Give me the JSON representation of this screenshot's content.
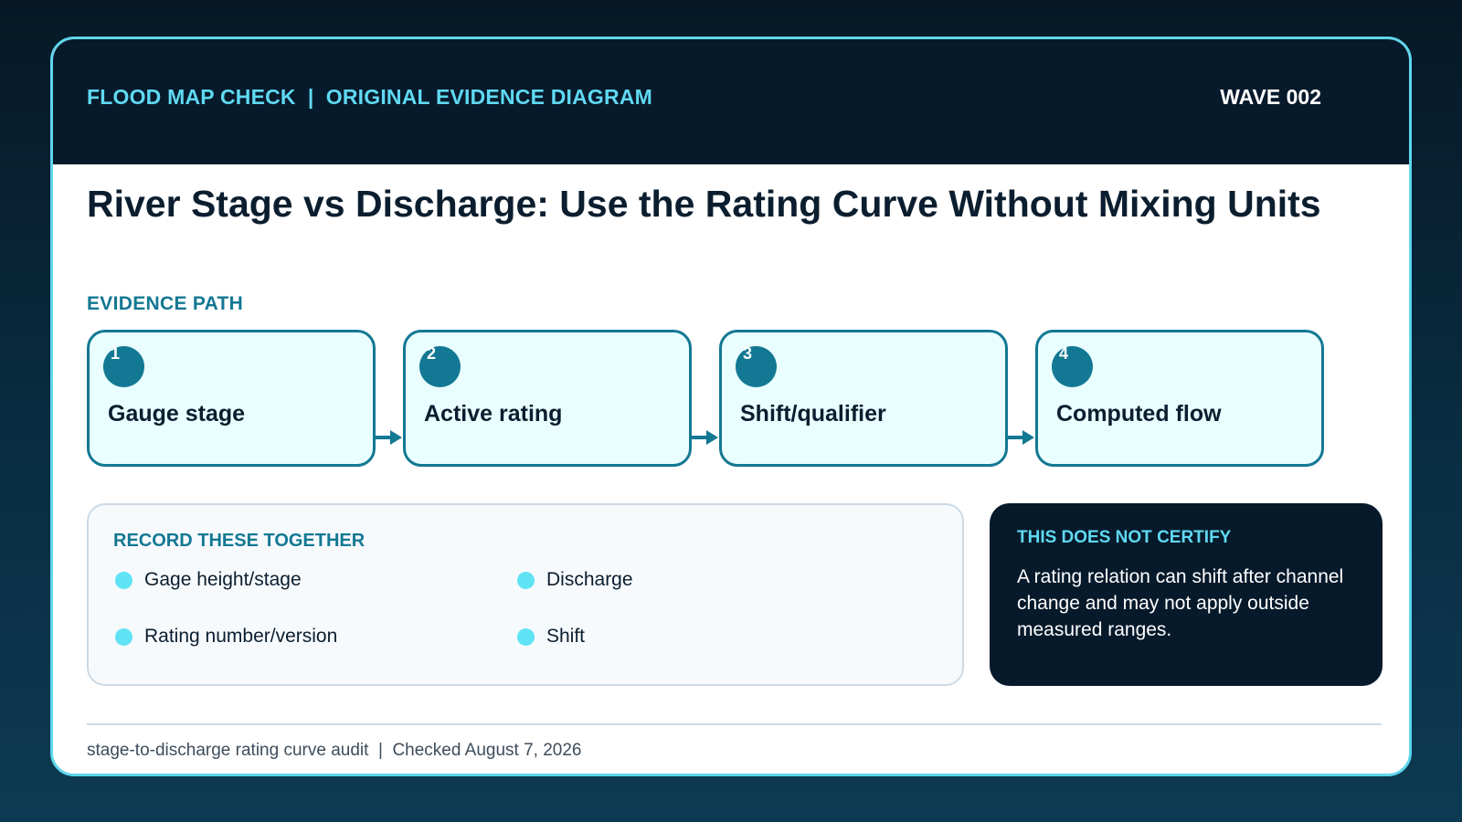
{
  "header": {
    "brand": "FLOOD MAP CHECK  |  ORIGINAL EVIDENCE DIAGRAM",
    "wave": "WAVE 002"
  },
  "title": "River Stage vs Discharge: Use the Rating Curve Without Mixing Units",
  "evidence_path": {
    "label": "EVIDENCE PATH",
    "steps": [
      {
        "number": "1",
        "label": "Gauge stage"
      },
      {
        "number": "2",
        "label": "Active rating"
      },
      {
        "number": "3",
        "label": "Shift/qualifier"
      },
      {
        "number": "4",
        "label": "Computed flow"
      }
    ]
  },
  "record": {
    "title": "RECORD THESE TOGETHER",
    "items": [
      "Gage height/stage",
      "Discharge",
      "Rating number/version",
      "Shift"
    ]
  },
  "notice": {
    "title": "THIS DOES NOT CERTIFY",
    "body": "A rating relation can shift after channel change and may not apply outside measured ranges."
  },
  "footer": {
    "text": "stage-to-discharge rating curve audit  |  Checked August 7, 2026"
  },
  "colors": {
    "accent": "#137893",
    "highlight": "#5fd9f2",
    "dark": "#071a2b"
  }
}
